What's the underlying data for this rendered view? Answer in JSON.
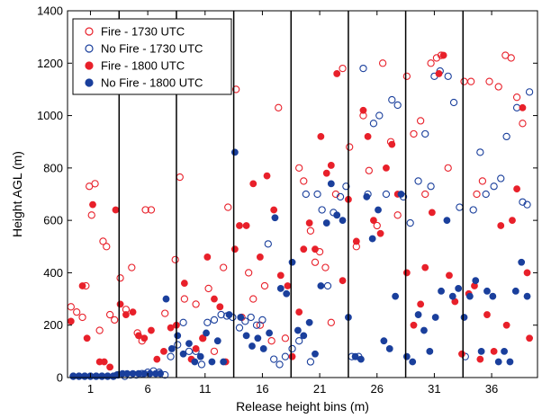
{
  "chart_data": {
    "type": "scatter",
    "title": "",
    "xlabel": "Release height bins (m)",
    "ylabel": "Height AGL (m)",
    "xlim": [
      -1,
      40
    ],
    "ylim": [
      0,
      1400
    ],
    "x_ticks": [
      1,
      6,
      11,
      16,
      21,
      26,
      31,
      36
    ],
    "y_ticks": [
      0,
      200,
      400,
      600,
      800,
      1000,
      1200,
      1400
    ],
    "bin_separators": [
      3.5,
      8.5,
      13.5,
      18.5,
      23.5,
      28.5,
      33.5
    ],
    "grid": false,
    "legend_position": "top-left",
    "series": [
      {
        "name": "Fire - 1730 UTC",
        "color": "#e8202a",
        "marker": "open-circle",
        "points": [
          [
            -0.7,
            270
          ],
          [
            -0.2,
            250
          ],
          [
            0.3,
            230
          ],
          [
            0.6,
            350
          ],
          [
            0.9,
            730
          ],
          [
            1.4,
            740
          ],
          [
            1.8,
            180
          ],
          [
            2.1,
            520
          ],
          [
            2.4,
            500
          ],
          [
            2.7,
            240
          ],
          [
            3.1,
            220
          ],
          [
            1.1,
            620
          ],
          [
            3.6,
            380
          ],
          [
            4.1,
            260
          ],
          [
            4.6,
            420
          ],
          [
            5.1,
            170
          ],
          [
            5.5,
            140
          ],
          [
            5.8,
            640
          ],
          [
            6.3,
            640
          ],
          [
            7.5,
            245
          ],
          [
            8.4,
            450
          ],
          [
            8.8,
            765
          ],
          [
            9.2,
            300
          ],
          [
            10.2,
            280
          ],
          [
            10.8,
            150
          ],
          [
            11.3,
            340
          ],
          [
            11.8,
            100
          ],
          [
            12.6,
            420
          ],
          [
            13.0,
            650
          ],
          [
            13.7,
            1100
          ],
          [
            14.2,
            230
          ],
          [
            14.8,
            400
          ],
          [
            15.2,
            300
          ],
          [
            15.8,
            200
          ],
          [
            16.2,
            350
          ],
          [
            16.8,
            140
          ],
          [
            17.4,
            1030
          ],
          [
            18.0,
            150
          ],
          [
            19.2,
            800
          ],
          [
            19.6,
            750
          ],
          [
            20.2,
            560
          ],
          [
            20.6,
            440
          ],
          [
            21.0,
            480
          ],
          [
            21.5,
            420
          ],
          [
            22.0,
            210
          ],
          [
            22.4,
            700
          ],
          [
            23.0,
            1180
          ],
          [
            23.6,
            880
          ],
          [
            24.2,
            500
          ],
          [
            24.8,
            1000
          ],
          [
            25.3,
            790
          ],
          [
            26.0,
            580
          ],
          [
            26.5,
            1200
          ],
          [
            27.2,
            900
          ],
          [
            27.8,
            620
          ],
          [
            28.6,
            1150
          ],
          [
            29.2,
            930
          ],
          [
            29.8,
            980
          ],
          [
            30.2,
            700
          ],
          [
            30.7,
            1200
          ],
          [
            31.2,
            1220
          ],
          [
            31.6,
            1230
          ],
          [
            32.2,
            800
          ],
          [
            33.6,
            1130
          ],
          [
            34.2,
            1130
          ],
          [
            34.7,
            700
          ],
          [
            35.2,
            750
          ],
          [
            35.8,
            1130
          ],
          [
            36.6,
            1110
          ],
          [
            37.2,
            1230
          ],
          [
            37.7,
            1220
          ],
          [
            38.2,
            1070
          ],
          [
            38.7,
            970
          ]
        ]
      },
      {
        "name": "No Fire - 1730 UTC",
        "color": "#1a3f9c",
        "marker": "open-circle",
        "points": [
          [
            -0.5,
            5
          ],
          [
            0.0,
            5
          ],
          [
            0.5,
            5
          ],
          [
            1.0,
            5
          ],
          [
            1.5,
            5
          ],
          [
            2.0,
            5
          ],
          [
            2.5,
            5
          ],
          [
            3.0,
            5
          ],
          [
            3.4,
            10
          ],
          [
            4.0,
            5
          ],
          [
            4.5,
            10
          ],
          [
            5.0,
            10
          ],
          [
            5.5,
            15
          ],
          [
            6.0,
            20
          ],
          [
            6.5,
            25
          ],
          [
            7.0,
            20
          ],
          [
            7.5,
            10
          ],
          [
            8.0,
            80
          ],
          [
            8.6,
            125
          ],
          [
            9.1,
            210
          ],
          [
            9.6,
            100
          ],
          [
            10.2,
            100
          ],
          [
            10.7,
            50
          ],
          [
            11.2,
            210
          ],
          [
            11.8,
            220
          ],
          [
            12.4,
            240
          ],
          [
            12.9,
            235
          ],
          [
            13.4,
            230
          ],
          [
            14.0,
            190
          ],
          [
            14.5,
            215
          ],
          [
            15.0,
            230
          ],
          [
            15.5,
            200
          ],
          [
            16.0,
            220
          ],
          [
            16.5,
            510
          ],
          [
            17.0,
            70
          ],
          [
            17.5,
            50
          ],
          [
            18.0,
            80
          ],
          [
            18.6,
            110
          ],
          [
            19.2,
            140
          ],
          [
            19.8,
            700
          ],
          [
            20.2,
            60
          ],
          [
            20.8,
            700
          ],
          [
            21.2,
            640
          ],
          [
            21.7,
            350
          ],
          [
            22.2,
            630
          ],
          [
            22.8,
            690
          ],
          [
            23.3,
            730
          ],
          [
            23.8,
            80
          ],
          [
            24.4,
            80
          ],
          [
            24.8,
            1180
          ],
          [
            25.2,
            700
          ],
          [
            25.7,
            970
          ],
          [
            26.2,
            1000
          ],
          [
            26.8,
            700
          ],
          [
            27.3,
            1060
          ],
          [
            27.8,
            1040
          ],
          [
            28.3,
            690
          ],
          [
            28.9,
            590
          ],
          [
            29.6,
            750
          ],
          [
            30.2,
            930
          ],
          [
            30.7,
            730
          ],
          [
            31.0,
            1150
          ],
          [
            31.5,
            1170
          ],
          [
            32.2,
            1150
          ],
          [
            32.7,
            1050
          ],
          [
            33.2,
            650
          ],
          [
            33.7,
            80
          ],
          [
            34.4,
            640
          ],
          [
            35.0,
            860
          ],
          [
            35.5,
            700
          ],
          [
            36.2,
            730
          ],
          [
            36.8,
            760
          ],
          [
            37.3,
            920
          ],
          [
            38.2,
            1030
          ],
          [
            38.7,
            670
          ],
          [
            39.1,
            660
          ],
          [
            39.3,
            1090
          ]
        ]
      },
      {
        "name": "Fire - 1800 UTC",
        "color": "#e8202a",
        "marker": "filled-circle",
        "points": [
          [
            -0.7,
            215
          ],
          [
            0.3,
            350
          ],
          [
            0.7,
            150
          ],
          [
            1.2,
            660
          ],
          [
            1.8,
            60
          ],
          [
            2.2,
            60
          ],
          [
            2.7,
            40
          ],
          [
            3.2,
            640
          ],
          [
            3.6,
            280
          ],
          [
            4.1,
            240
          ],
          [
            4.7,
            250
          ],
          [
            5.2,
            160
          ],
          [
            5.7,
            150
          ],
          [
            6.3,
            180
          ],
          [
            6.8,
            70
          ],
          [
            7.4,
            100
          ],
          [
            8.0,
            190
          ],
          [
            8.5,
            200
          ],
          [
            9.2,
            360
          ],
          [
            9.8,
            70
          ],
          [
            10.2,
            110
          ],
          [
            10.8,
            150
          ],
          [
            11.2,
            460
          ],
          [
            11.8,
            300
          ],
          [
            12.3,
            270
          ],
          [
            12.8,
            60
          ],
          [
            13.6,
            490
          ],
          [
            14.0,
            580
          ],
          [
            14.6,
            580
          ],
          [
            15.2,
            740
          ],
          [
            15.8,
            460
          ],
          [
            16.4,
            770
          ],
          [
            17.0,
            640
          ],
          [
            17.6,
            390
          ],
          [
            18.2,
            350
          ],
          [
            18.6,
            80
          ],
          [
            19.2,
            250
          ],
          [
            19.6,
            490
          ],
          [
            20.1,
            590
          ],
          [
            20.6,
            490
          ],
          [
            21.1,
            920
          ],
          [
            21.6,
            780
          ],
          [
            22.0,
            810
          ],
          [
            22.5,
            1160
          ],
          [
            23.0,
            370
          ],
          [
            23.5,
            680
          ],
          [
            24.2,
            520
          ],
          [
            24.8,
            1020
          ],
          [
            25.2,
            920
          ],
          [
            25.7,
            600
          ],
          [
            26.3,
            550
          ],
          [
            26.8,
            800
          ],
          [
            27.3,
            890
          ],
          [
            27.8,
            700
          ],
          [
            28.6,
            400
          ],
          [
            29.2,
            200
          ],
          [
            29.8,
            280
          ],
          [
            30.2,
            420
          ],
          [
            30.8,
            630
          ],
          [
            31.4,
            1160
          ],
          [
            31.8,
            1230
          ],
          [
            32.3,
            390
          ],
          [
            32.8,
            290
          ],
          [
            33.4,
            90
          ],
          [
            34.0,
            320
          ],
          [
            34.5,
            350
          ],
          [
            35.0,
            70
          ],
          [
            35.6,
            240
          ],
          [
            36.2,
            100
          ],
          [
            36.8,
            580
          ],
          [
            37.3,
            200
          ],
          [
            37.8,
            600
          ],
          [
            38.2,
            720
          ],
          [
            38.7,
            1030
          ],
          [
            39.1,
            400
          ],
          [
            39.3,
            150
          ]
        ]
      },
      {
        "name": "No Fire - 1800 UTC",
        "color": "#1a3f9c",
        "marker": "filled-circle",
        "points": [
          [
            -0.5,
            5
          ],
          [
            0.0,
            5
          ],
          [
            0.5,
            5
          ],
          [
            1.0,
            5
          ],
          [
            1.5,
            5
          ],
          [
            2.0,
            5
          ],
          [
            2.5,
            5
          ],
          [
            3.0,
            5
          ],
          [
            3.3,
            10
          ],
          [
            3.8,
            15
          ],
          [
            4.2,
            15
          ],
          [
            4.7,
            15
          ],
          [
            5.2,
            15
          ],
          [
            5.7,
            15
          ],
          [
            6.2,
            15
          ],
          [
            6.7,
            15
          ],
          [
            7.1,
            15
          ],
          [
            7.6,
            300
          ],
          [
            8.1,
            110
          ],
          [
            8.6,
            160
          ],
          [
            9.1,
            90
          ],
          [
            9.6,
            130
          ],
          [
            10.1,
            60
          ],
          [
            10.6,
            80
          ],
          [
            11.1,
            170
          ],
          [
            11.6,
            60
          ],
          [
            12.1,
            140
          ],
          [
            12.6,
            60
          ],
          [
            13.1,
            240
          ],
          [
            13.6,
            860
          ],
          [
            14.1,
            230
          ],
          [
            14.6,
            160
          ],
          [
            15.1,
            120
          ],
          [
            15.6,
            150
          ],
          [
            16.1,
            110
          ],
          [
            16.6,
            170
          ],
          [
            17.1,
            610
          ],
          [
            17.6,
            340
          ],
          [
            18.1,
            320
          ],
          [
            18.6,
            440
          ],
          [
            19.1,
            180
          ],
          [
            19.6,
            160
          ],
          [
            20.1,
            210
          ],
          [
            20.6,
            90
          ],
          [
            21.1,
            350
          ],
          [
            21.6,
            590
          ],
          [
            22.0,
            740
          ],
          [
            22.5,
            620
          ],
          [
            23.0,
            600
          ],
          [
            23.5,
            230
          ],
          [
            24.1,
            80
          ],
          [
            24.6,
            70
          ],
          [
            25.1,
            690
          ],
          [
            25.6,
            530
          ],
          [
            26.1,
            640
          ],
          [
            26.6,
            140
          ],
          [
            27.1,
            110
          ],
          [
            27.6,
            310
          ],
          [
            28.1,
            700
          ],
          [
            28.6,
            80
          ],
          [
            29.1,
            60
          ],
          [
            29.6,
            240
          ],
          [
            30.1,
            180
          ],
          [
            30.6,
            100
          ],
          [
            31.1,
            230
          ],
          [
            31.6,
            330
          ],
          [
            32.1,
            600
          ],
          [
            32.6,
            310
          ],
          [
            33.1,
            340
          ],
          [
            33.6,
            230
          ],
          [
            34.1,
            310
          ],
          [
            34.6,
            370
          ],
          [
            35.1,
            100
          ],
          [
            35.6,
            330
          ],
          [
            36.1,
            310
          ],
          [
            36.6,
            60
          ],
          [
            37.1,
            100
          ],
          [
            37.6,
            60
          ],
          [
            38.1,
            330
          ],
          [
            38.6,
            440
          ],
          [
            39.1,
            310
          ]
        ]
      }
    ]
  }
}
